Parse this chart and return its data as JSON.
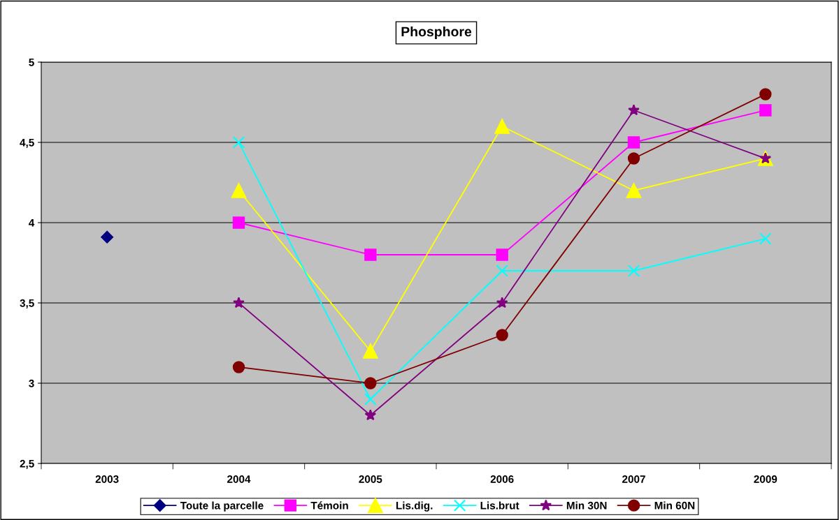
{
  "chart_data": {
    "type": "line",
    "title": "Phosphore",
    "categories": [
      "2003",
      "2004",
      "2005",
      "2006",
      "2007",
      "2009"
    ],
    "series": [
      {
        "name": "Toute la parcelle",
        "color": "#000080",
        "marker": "diamond",
        "values": [
          3.91,
          null,
          null,
          null,
          null,
          null
        ]
      },
      {
        "name": "Témoin",
        "color": "#ff00ff",
        "marker": "square",
        "values": [
          null,
          4.0,
          3.8,
          3.8,
          4.5,
          4.7
        ]
      },
      {
        "name": "Lis.dig.",
        "color": "#ffff00",
        "marker": "triangle",
        "values": [
          null,
          4.2,
          3.2,
          4.6,
          4.2,
          4.4
        ]
      },
      {
        "name": "Lis.brut",
        "color": "#00ffff",
        "marker": "cross",
        "values": [
          null,
          4.5,
          2.9,
          3.7,
          3.7,
          3.9
        ]
      },
      {
        "name": "Min 30N",
        "color": "#800080",
        "marker": "star",
        "values": [
          null,
          3.5,
          2.8,
          3.5,
          4.7,
          4.4
        ]
      },
      {
        "name": "Min 60N",
        "color": "#800000",
        "marker": "circle",
        "values": [
          null,
          3.1,
          3.0,
          3.3,
          4.4,
          4.8
        ]
      }
    ],
    "ylim": [
      2.5,
      5
    ],
    "yticks": [
      {
        "value": 2.5,
        "label": "2,5"
      },
      3,
      {
        "value": 3.5,
        "label": "3,5"
      },
      4,
      {
        "value": 4.5,
        "label": "4,5"
      },
      5
    ],
    "grid": "y",
    "legend": "bottom",
    "line_style": "solid"
  }
}
